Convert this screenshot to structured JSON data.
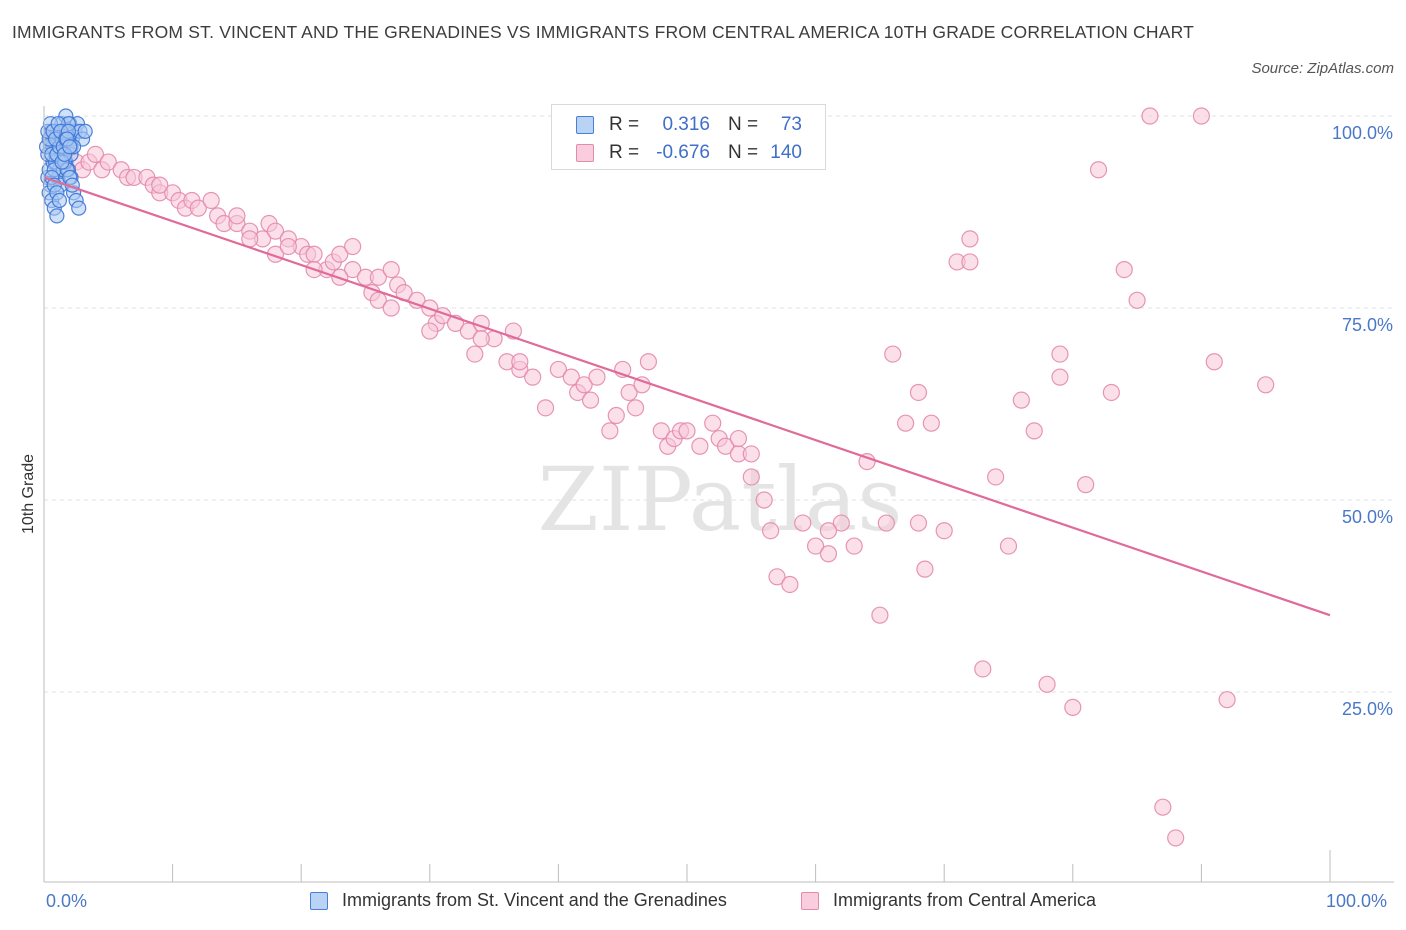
{
  "title": "IMMIGRANTS FROM ST. VINCENT AND THE GRENADINES VS IMMIGRANTS FROM CENTRAL AMERICA 10TH GRADE CORRELATION CHART",
  "source": "Source: ZipAtlas.com",
  "watermark": "ZIPatlas",
  "legend": {
    "r_label": "R =",
    "n_label": "N =",
    "series": [
      {
        "r": "0.316",
        "n": "73"
      },
      {
        "r": "-0.676",
        "n": "140"
      }
    ]
  },
  "colors": {
    "blue_fill": "#a9c8f2",
    "blue_stroke": "#3b74d6",
    "pink_fill": "#f7c7d8",
    "pink_stroke": "#e48aab",
    "trend": "#e06a98",
    "grid": "#dde3ea",
    "axis_tick_text": "#4a78c8"
  },
  "chart_data": {
    "type": "scatter",
    "ylabel": "10th Grade",
    "xlabel_left": "0.0%",
    "xlabel_right": "100.0%",
    "x_ticks": [
      "0.0%",
      "100.0%"
    ],
    "y_ticks": [
      "100.0%",
      "75.0%",
      "50.0%",
      "25.0%"
    ],
    "xlim": [
      0,
      100
    ],
    "ylim": [
      0,
      100
    ],
    "grid": true,
    "legend_position": "bottom",
    "series": [
      {
        "name": "Immigrants from St. Vincent and the Grenadines",
        "color": "blue",
        "points": [
          [
            0.3,
            92
          ],
          [
            0.4,
            93
          ],
          [
            0.5,
            96
          ],
          [
            0.6,
            98
          ],
          [
            0.7,
            94
          ],
          [
            0.8,
            97
          ],
          [
            0.5,
            91
          ],
          [
            0.9,
            95
          ],
          [
            1.0,
            98
          ],
          [
            1.1,
            96
          ],
          [
            1.2,
            93
          ],
          [
            1.3,
            97
          ],
          [
            1.4,
            99
          ],
          [
            1.5,
            95
          ],
          [
            0.4,
            90
          ],
          [
            0.6,
            89
          ],
          [
            0.8,
            88
          ],
          [
            1.0,
            87
          ],
          [
            1.6,
            98
          ],
          [
            1.8,
            96
          ],
          [
            2.0,
            99
          ],
          [
            2.2,
            97
          ],
          [
            2.4,
            98
          ],
          [
            2.6,
            99
          ],
          [
            2.8,
            98
          ],
          [
            3.0,
            97
          ],
          [
            3.2,
            98
          ],
          [
            1.7,
            100
          ],
          [
            1.9,
            99
          ],
          [
            2.1,
            96
          ],
          [
            0.3,
            95
          ],
          [
            0.5,
            97
          ],
          [
            0.7,
            96
          ],
          [
            0.9,
            94
          ],
          [
            1.1,
            92
          ],
          [
            1.3,
            91
          ],
          [
            1.5,
            93
          ],
          [
            1.7,
            94
          ],
          [
            1.9,
            93
          ],
          [
            2.1,
            92
          ],
          [
            2.3,
            90
          ],
          [
            2.5,
            89
          ],
          [
            2.7,
            88
          ],
          [
            0.2,
            96
          ],
          [
            0.4,
            97
          ],
          [
            0.6,
            95
          ],
          [
            0.8,
            93
          ],
          [
            1.0,
            95
          ],
          [
            1.2,
            96
          ],
          [
            1.4,
            97
          ],
          [
            1.6,
            94
          ],
          [
            1.8,
            93
          ],
          [
            2.0,
            92
          ],
          [
            2.2,
            91
          ],
          [
            0.3,
            98
          ],
          [
            0.5,
            99
          ],
          [
            0.7,
            98
          ],
          [
            0.9,
            97
          ],
          [
            1.1,
            99
          ],
          [
            1.3,
            98
          ],
          [
            1.5,
            96
          ],
          [
            1.7,
            97
          ],
          [
            1.9,
            98
          ],
          [
            2.1,
            95
          ],
          [
            2.3,
            96
          ],
          [
            0.6,
            92
          ],
          [
            0.8,
            91
          ],
          [
            1.0,
            90
          ],
          [
            1.2,
            89
          ],
          [
            1.4,
            94
          ],
          [
            1.6,
            95
          ],
          [
            1.8,
            97
          ],
          [
            2.0,
            96
          ]
        ]
      },
      {
        "name": "Immigrants from Central America",
        "color": "pink",
        "points": [
          [
            0.8,
            97
          ],
          [
            1.2,
            96
          ],
          [
            1.6,
            95
          ],
          [
            2.0,
            96
          ],
          [
            2.5,
            94
          ],
          [
            3.0,
            93
          ],
          [
            3.5,
            94
          ],
          [
            4.0,
            95
          ],
          [
            4.5,
            93
          ],
          [
            5,
            94
          ],
          [
            6,
            93
          ],
          [
            6.5,
            92
          ],
          [
            7,
            92
          ],
          [
            8,
            92
          ],
          [
            8.5,
            91
          ],
          [
            9,
            90
          ],
          [
            10,
            90
          ],
          [
            10.5,
            89
          ],
          [
            11,
            88
          ],
          [
            11.5,
            89
          ],
          [
            12,
            88
          ],
          [
            13,
            89
          ],
          [
            13.5,
            87
          ],
          [
            14,
            86
          ],
          [
            15,
            86
          ],
          [
            16,
            85
          ],
          [
            17,
            84
          ],
          [
            17.5,
            86
          ],
          [
            18,
            85
          ],
          [
            19,
            84
          ],
          [
            20,
            83
          ],
          [
            20.5,
            82
          ],
          [
            21,
            82
          ],
          [
            22,
            80
          ],
          [
            22.5,
            81
          ],
          [
            23,
            82
          ],
          [
            24,
            80
          ],
          [
            25,
            79
          ],
          [
            25.5,
            77
          ],
          [
            26,
            76
          ],
          [
            27,
            75
          ],
          [
            27.5,
            78
          ],
          [
            28,
            77
          ],
          [
            29,
            76
          ],
          [
            30,
            75
          ],
          [
            30.5,
            73
          ],
          [
            31,
            74
          ],
          [
            32,
            73
          ],
          [
            33,
            72
          ],
          [
            33.5,
            69
          ],
          [
            34,
            73
          ],
          [
            35,
            71
          ],
          [
            36,
            68
          ],
          [
            36.5,
            72
          ],
          [
            37,
            67
          ],
          [
            38,
            66
          ],
          [
            39,
            62
          ],
          [
            40,
            67
          ],
          [
            41,
            66
          ],
          [
            41.5,
            64
          ],
          [
            42,
            65
          ],
          [
            42.5,
            63
          ],
          [
            43,
            66
          ],
          [
            44,
            59
          ],
          [
            44.5,
            61
          ],
          [
            45,
            67
          ],
          [
            45.5,
            64
          ],
          [
            46,
            62
          ],
          [
            46.5,
            65
          ],
          [
            47,
            68
          ],
          [
            48,
            59
          ],
          [
            48.5,
            57
          ],
          [
            49,
            58
          ],
          [
            49.5,
            59
          ],
          [
            50,
            59
          ],
          [
            51,
            57
          ],
          [
            52,
            60
          ],
          [
            52.5,
            58
          ],
          [
            53,
            57
          ],
          [
            54,
            56
          ],
          [
            55,
            53
          ],
          [
            56,
            50
          ],
          [
            56.5,
            46
          ],
          [
            57,
            40
          ],
          [
            58,
            39
          ],
          [
            59,
            47
          ],
          [
            60,
            44
          ],
          [
            61,
            43
          ],
          [
            62,
            47
          ],
          [
            63,
            44
          ],
          [
            64,
            55
          ],
          [
            65,
            35
          ],
          [
            65.5,
            47
          ],
          [
            66,
            69
          ],
          [
            67,
            60
          ],
          [
            68,
            47
          ],
          [
            68.5,
            41
          ],
          [
            69,
            60
          ],
          [
            70,
            46
          ],
          [
            71,
            81
          ],
          [
            72,
            84
          ],
          [
            73,
            28
          ],
          [
            74,
            53
          ],
          [
            75,
            44
          ],
          [
            76,
            63
          ],
          [
            77,
            59
          ],
          [
            78,
            26
          ],
          [
            79,
            66
          ],
          [
            80,
            23
          ],
          [
            81,
            52
          ],
          [
            82,
            93
          ],
          [
            83,
            64
          ],
          [
            84,
            80
          ],
          [
            85,
            76
          ],
          [
            86,
            100
          ],
          [
            87,
            10
          ],
          [
            88,
            6
          ],
          [
            90,
            100
          ],
          [
            91,
            68
          ],
          [
            92,
            24
          ],
          [
            95,
            65
          ],
          [
            72,
            81
          ],
          [
            79,
            69
          ],
          [
            54,
            58
          ],
          [
            55,
            56
          ],
          [
            61,
            46
          ],
          [
            68,
            64
          ],
          [
            30,
            72
          ],
          [
            37,
            68
          ],
          [
            26,
            79
          ],
          [
            34,
            71
          ],
          [
            27,
            80
          ],
          [
            24,
            83
          ],
          [
            9,
            91
          ],
          [
            15,
            87
          ],
          [
            16,
            84
          ],
          [
            18,
            82
          ],
          [
            19,
            83
          ],
          [
            21,
            80
          ],
          [
            23,
            79
          ]
        ]
      }
    ],
    "trend_line": {
      "x": [
        0,
        100
      ],
      "y": [
        92,
        35
      ]
    }
  }
}
